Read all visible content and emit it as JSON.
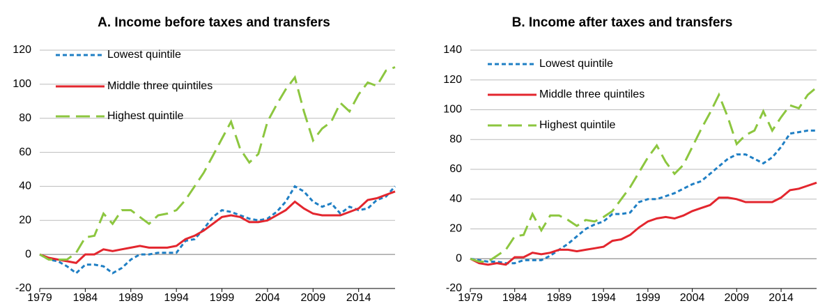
{
  "chart_data": [
    {
      "type": "line",
      "title": "A. Income before taxes and transfers",
      "x": [
        1979,
        1980,
        1981,
        1982,
        1983,
        1984,
        1985,
        1986,
        1987,
        1988,
        1989,
        1990,
        1991,
        1992,
        1993,
        1994,
        1995,
        1996,
        1997,
        1998,
        1999,
        2000,
        2001,
        2002,
        2003,
        2004,
        2005,
        2006,
        2007,
        2008,
        2009,
        2010,
        2011,
        2012,
        2013,
        2014,
        2015,
        2016,
        2017,
        2018
      ],
      "xlim": [
        1979,
        2018
      ],
      "xticks": [
        1979,
        1984,
        1989,
        1994,
        1999,
        2004,
        2009,
        2014
      ],
      "ylim": [
        -20,
        120
      ],
      "yticks": [
        -20,
        0,
        20,
        40,
        60,
        80,
        100,
        120
      ],
      "grid": true,
      "series": [
        {
          "name": "Lowest quintile",
          "color": "#1f7fc4",
          "dash": "short",
          "values": [
            0,
            -3,
            -4,
            -7,
            -11,
            -6,
            -6,
            -7,
            -11,
            -8,
            -3,
            0,
            0,
            1,
            1,
            1,
            8,
            9,
            15,
            22,
            26,
            25,
            23,
            21,
            20,
            21,
            25,
            31,
            40,
            37,
            31,
            28,
            30,
            24,
            28,
            26,
            27,
            32,
            34,
            40
          ]
        },
        {
          "name": "Middle three quintiles",
          "color": "#e3262e",
          "dash": "solid",
          "values": [
            0,
            -2,
            -3,
            -4,
            -5,
            0,
            0,
            3,
            2,
            3,
            4,
            5,
            4,
            4,
            4,
            5,
            9,
            11,
            14,
            18,
            22,
            23,
            22,
            19,
            19,
            20,
            23,
            26,
            31,
            27,
            24,
            23,
            23,
            23,
            25,
            27,
            32,
            33,
            35,
            37
          ]
        },
        {
          "name": "Highest quintile",
          "color": "#8cc63f",
          "dash": "long",
          "values": [
            0,
            -3,
            -3,
            -3,
            1,
            10,
            11,
            24,
            18,
            26,
            26,
            22,
            18,
            23,
            24,
            26,
            32,
            40,
            48,
            58,
            68,
            78,
            62,
            54,
            59,
            78,
            88,
            97,
            104,
            84,
            67,
            74,
            78,
            89,
            84,
            94,
            101,
            99,
            108,
            110
          ]
        }
      ]
    },
    {
      "type": "line",
      "title": "B. Income after taxes and transfers",
      "x": [
        1979,
        1980,
        1981,
        1982,
        1983,
        1984,
        1985,
        1986,
        1987,
        1988,
        1989,
        1990,
        1991,
        1992,
        1993,
        1994,
        1995,
        1996,
        1997,
        1998,
        1999,
        2000,
        2001,
        2002,
        2003,
        2004,
        2005,
        2006,
        2007,
        2008,
        2009,
        2010,
        2011,
        2012,
        2013,
        2014,
        2015,
        2016,
        2017,
        2018
      ],
      "xlim": [
        1979,
        2018
      ],
      "xticks": [
        1979,
        1984,
        1989,
        1994,
        1999,
        2004,
        2009,
        2014
      ],
      "ylim": [
        -20,
        140
      ],
      "yticks": [
        -20,
        0,
        20,
        40,
        60,
        80,
        100,
        120,
        140
      ],
      "grid": true,
      "series": [
        {
          "name": "Lowest quintile",
          "color": "#1f7fc4",
          "dash": "short",
          "values": [
            0,
            -1,
            -2,
            -2,
            -3,
            -3,
            -1,
            -1,
            -1,
            2,
            6,
            10,
            15,
            20,
            23,
            25,
            30,
            30,
            31,
            38,
            40,
            40,
            42,
            44,
            47,
            50,
            52,
            57,
            62,
            67,
            70,
            70,
            67,
            64,
            68,
            75,
            84,
            85,
            86,
            86
          ]
        },
        {
          "name": "Middle three quintiles",
          "color": "#e3262e",
          "dash": "solid",
          "values": [
            0,
            -3,
            -4,
            -3,
            -4,
            1,
            1,
            4,
            3,
            4,
            6,
            6,
            5,
            6,
            7,
            8,
            12,
            13,
            16,
            21,
            25,
            27,
            28,
            27,
            29,
            32,
            34,
            36,
            41,
            41,
            40,
            38,
            38,
            38,
            38,
            41,
            46,
            47,
            49,
            51
          ]
        },
        {
          "name": "Highest quintile",
          "color": "#8cc63f",
          "dash": "long",
          "values": [
            0,
            -2,
            -2,
            2,
            6,
            15,
            16,
            30,
            19,
            29,
            29,
            26,
            22,
            26,
            25,
            28,
            32,
            40,
            48,
            58,
            68,
            76,
            65,
            57,
            63,
            75,
            87,
            98,
            110,
            95,
            77,
            83,
            86,
            99,
            86,
            95,
            103,
            101,
            110,
            115
          ]
        }
      ]
    }
  ]
}
